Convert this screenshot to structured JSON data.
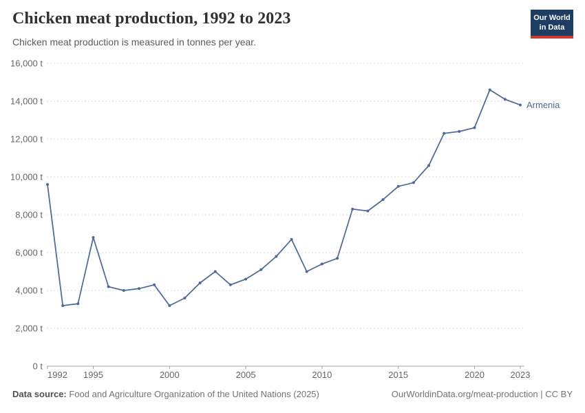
{
  "header": {
    "title": "Chicken meat production, 1992 to 2023",
    "subtitle": "Chicken meat production is measured in tonnes per year.",
    "logo_line1": "Our World",
    "logo_line2": "in Data"
  },
  "chart_data": {
    "type": "line",
    "title": "Chicken meat production, 1992 to 2023",
    "ylabel": "",
    "xlabel": "",
    "unit": "t",
    "grid": "dashed",
    "legend_position": "end-of-line-label",
    "xlim": [
      1992,
      2023
    ],
    "ylim": [
      0,
      16000
    ],
    "x_ticks": [
      "1992",
      "1995",
      "2000",
      "2005",
      "2010",
      "2015",
      "2020",
      "2023"
    ],
    "x_tick_years": [
      1992,
      1995,
      2000,
      2005,
      2010,
      2015,
      2020,
      2023
    ],
    "y_ticks": [
      {
        "value": 0,
        "label": "0 t"
      },
      {
        "value": 2000,
        "label": "2,000 t"
      },
      {
        "value": 4000,
        "label": "4,000 t"
      },
      {
        "value": 6000,
        "label": "6,000 t"
      },
      {
        "value": 8000,
        "label": "8,000 t"
      },
      {
        "value": 10000,
        "label": "10,000 t"
      },
      {
        "value": 12000,
        "label": "12,000 t"
      },
      {
        "value": 14000,
        "label": "14,000 t"
      },
      {
        "value": 16000,
        "label": "16,000 t"
      }
    ],
    "series": [
      {
        "name": "Armenia",
        "color": "#4c6a9c",
        "x": [
          1992,
          1993,
          1994,
          1995,
          1996,
          1997,
          1998,
          1999,
          2000,
          2001,
          2002,
          2003,
          2004,
          2005,
          2006,
          2007,
          2008,
          2009,
          2010,
          2011,
          2012,
          2013,
          2014,
          2015,
          2016,
          2017,
          2018,
          2019,
          2020,
          2021,
          2022,
          2023
        ],
        "values": [
          9600,
          3200,
          3300,
          6800,
          4200,
          4000,
          4100,
          4300,
          3200,
          3600,
          4400,
          5000,
          4300,
          4600,
          5100,
          5800,
          6700,
          5000,
          5400,
          5700,
          8300,
          8200,
          8800,
          9500,
          9700,
          10600,
          12300,
          12400,
          12600,
          14600,
          14100,
          13800
        ]
      }
    ]
  },
  "footer": {
    "source_label": "Data source:",
    "source_text": " Food and Agriculture Organization of the United Nations (2025)",
    "link_text": "OurWorldinData.org/meat-production | CC BY"
  },
  "colors": {
    "line": "#4c6a9c",
    "grid": "#dadada",
    "axis": "#a3a3a3",
    "tick_text": "#666666",
    "logo_navy": "#1d3d63",
    "logo_red": "#cc3b33"
  }
}
